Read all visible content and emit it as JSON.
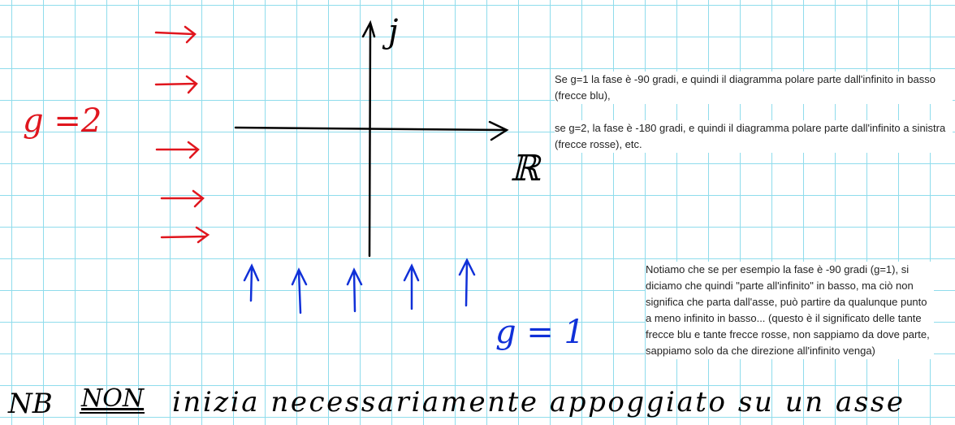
{
  "axes": {
    "imaginary_label": "j",
    "real_label": "ℝ"
  },
  "handwriting": {
    "red_label": "g =2",
    "blue_label": "g = 1",
    "footnote_nb": "NB",
    "footnote_non": "NON",
    "footnote_rest": "inizia necessariamente appoggiato su un asse"
  },
  "notes": [
    "Se g=1 la fase è -90 gradi, e quindi il diagramma polare parte dall'infinito in basso (frecce blu),",
    "se g=2, la fase è -180 gradi, e quindi il diagramma polare parte dall'infinito a sinistra (frecce rosse), etc.",
    "Notiamo che se per esempio la fase è -90 gradi (g=1), si diciamo che quindi \"parte all'infinito\" in basso, ma ciò non significa che parta dall'asse, può partire da qualunque punto a meno infinito in basso... (questo è il significato delle tante frecce blu e tante frecce rosse, non sappiamo da dove parte, sappiamo solo da che direzione all'infinito venga)"
  ]
}
